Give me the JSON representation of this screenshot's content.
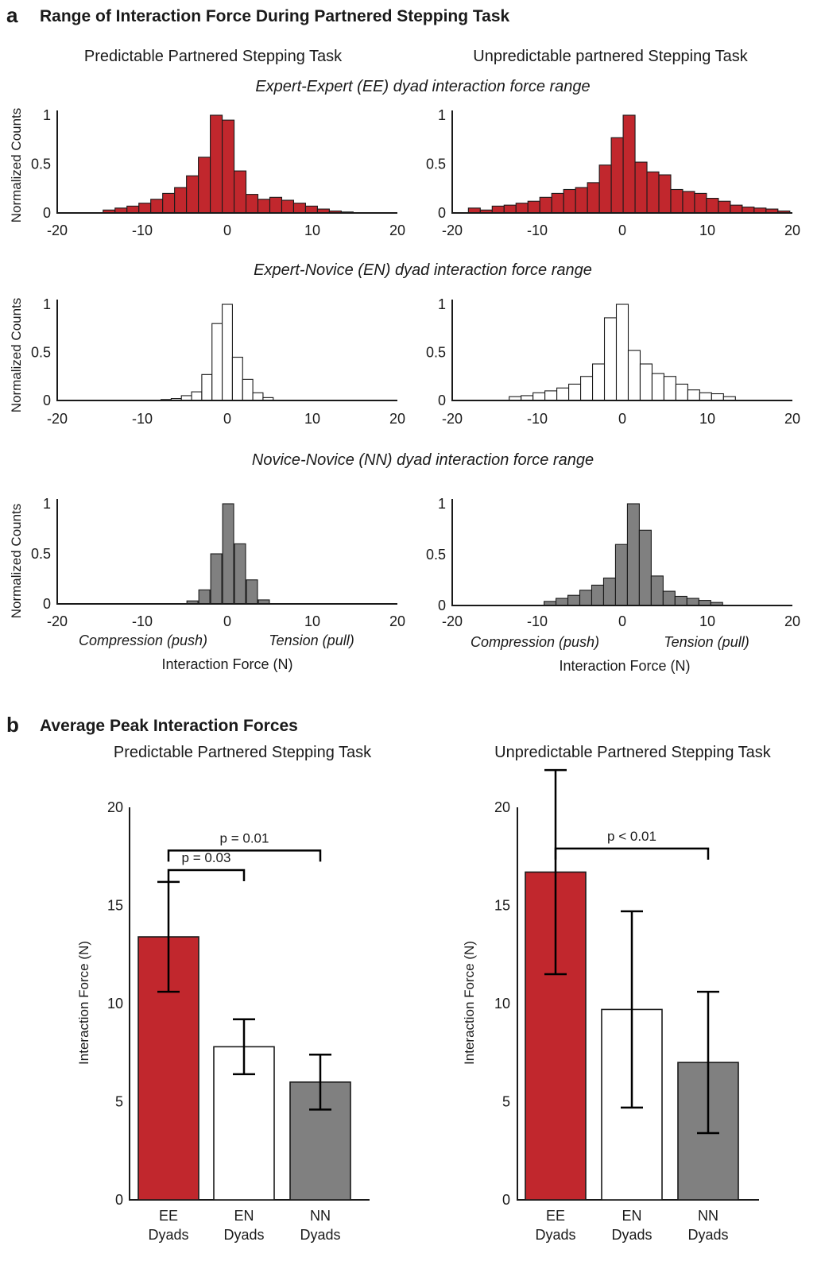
{
  "figure": {
    "panel_a": {
      "letter": "a",
      "title": "Range of Interaction Force During Partnered Stepping Task",
      "column_titles": [
        "Predictable Partnered Stepping Task",
        "Unpredictable partnered Stepping Task"
      ],
      "dyad_titles": [
        "Expert-Expert (EE) dyad interaction force range",
        "Expert-Novice (EN) dyad interaction force range",
        "Novice-Novice (NN) dyad interaction force range"
      ],
      "ylabel": "Normalized Counts",
      "xlabel": "Interaction Force (N)",
      "compression_label": "Compression (push)",
      "tension_label": "Tension (pull)"
    },
    "panel_b": {
      "letter": "b",
      "title": "Average Peak Interaction Forces",
      "column_titles": [
        "Predictable Partnered Stepping Task",
        "Unpredictable Partnered Stepping Task"
      ],
      "ylabel": "Interaction Force (N)"
    }
  },
  "colors": {
    "ee": "#c1272d",
    "en": "#ffffff",
    "nn": "#808080",
    "axis": "#1a1a1a"
  },
  "chart_data": [
    {
      "type": "bar",
      "id": "hist-ee-predictable",
      "dyad": "EE",
      "task": "Predictable",
      "xlim": [
        -20,
        20
      ],
      "ylim": [
        0,
        1
      ],
      "xticks": [
        "-20",
        "-10",
        "0",
        "10",
        "20"
      ],
      "yticks": [
        "0",
        "0.5",
        "1"
      ],
      "bin_width": 1.4,
      "x": [
        -13.9,
        -12.5,
        -11.1,
        -9.7,
        -8.3,
        -6.9,
        -5.5,
        -4.1,
        -2.7,
        -1.3,
        0.1,
        1.5,
        2.9,
        4.3,
        5.7,
        7.1,
        8.5,
        9.9,
        11.3,
        12.7,
        14.1
      ],
      "values": [
        0.03,
        0.05,
        0.07,
        0.1,
        0.14,
        0.2,
        0.26,
        0.38,
        0.57,
        1.0,
        0.95,
        0.43,
        0.19,
        0.14,
        0.16,
        0.13,
        0.1,
        0.07,
        0.04,
        0.02,
        0.01
      ]
    },
    {
      "type": "bar",
      "id": "hist-ee-unpredictable",
      "dyad": "EE",
      "task": "Unpredictable",
      "xlim": [
        -20,
        20
      ],
      "ylim": [
        0,
        1
      ],
      "xticks": [
        "-20",
        "-10",
        "0",
        "10",
        "20"
      ],
      "yticks": [
        "0",
        "0.5",
        "1"
      ],
      "bin_width": 1.4,
      "x": [
        -17.4,
        -16.0,
        -14.6,
        -13.2,
        -11.8,
        -10.4,
        -9.0,
        -7.6,
        -6.2,
        -4.8,
        -3.4,
        -2.0,
        -0.6,
        0.8,
        2.2,
        3.6,
        5.0,
        6.4,
        7.8,
        9.2,
        10.6,
        12.0,
        13.4,
        14.8,
        16.2,
        17.6,
        19.0
      ],
      "values": [
        0.05,
        0.03,
        0.07,
        0.08,
        0.1,
        0.12,
        0.16,
        0.2,
        0.24,
        0.26,
        0.31,
        0.49,
        0.77,
        1.0,
        0.52,
        0.42,
        0.39,
        0.24,
        0.22,
        0.2,
        0.15,
        0.12,
        0.08,
        0.06,
        0.05,
        0.04,
        0.02
      ]
    },
    {
      "type": "bar",
      "id": "hist-en-predictable",
      "dyad": "EN",
      "task": "Predictable",
      "xlim": [
        -20,
        20
      ],
      "ylim": [
        0,
        1
      ],
      "xticks": [
        "-20",
        "-10",
        "0",
        "10",
        "20"
      ],
      "yticks": [
        "0",
        "0.5",
        "1"
      ],
      "bin_width": 1.2,
      "x": [
        -7.2,
        -6.0,
        -4.8,
        -3.6,
        -2.4,
        -1.2,
        0.0,
        1.2,
        2.4,
        3.6,
        4.8
      ],
      "values": [
        0.01,
        0.02,
        0.05,
        0.09,
        0.27,
        0.8,
        1.0,
        0.45,
        0.22,
        0.08,
        0.03
      ]
    },
    {
      "type": "bar",
      "id": "hist-en-unpredictable",
      "dyad": "EN",
      "task": "Unpredictable",
      "xlim": [
        -20,
        20
      ],
      "ylim": [
        0,
        1
      ],
      "xticks": [
        "-20",
        "-10",
        "0",
        "10",
        "20"
      ],
      "yticks": [
        "0",
        "0.5",
        "1"
      ],
      "bin_width": 1.4,
      "x": [
        -12.6,
        -11.2,
        -9.8,
        -8.4,
        -7.0,
        -5.6,
        -4.2,
        -2.8,
        -1.4,
        0.0,
        1.4,
        2.8,
        4.2,
        5.6,
        7.0,
        8.4,
        9.8,
        11.2,
        12.6
      ],
      "values": [
        0.04,
        0.05,
        0.08,
        0.1,
        0.13,
        0.17,
        0.25,
        0.38,
        0.86,
        1.0,
        0.52,
        0.38,
        0.28,
        0.25,
        0.17,
        0.11,
        0.08,
        0.07,
        0.04
      ]
    },
    {
      "type": "bar",
      "id": "hist-nn-predictable",
      "dyad": "NN",
      "task": "Predictable",
      "xlim": [
        -20,
        20
      ],
      "ylim": [
        0,
        1
      ],
      "xticks": [
        "-20",
        "-10",
        "0",
        "10",
        "20"
      ],
      "yticks": [
        "0",
        "0.5",
        "1"
      ],
      "bin_width": 1.3,
      "x": [
        -4.1,
        -2.7,
        -1.3,
        0.1,
        1.5,
        2.9,
        4.3
      ],
      "values": [
        0.03,
        0.14,
        0.5,
        1.0,
        0.6,
        0.24,
        0.04
      ]
    },
    {
      "type": "bar",
      "id": "hist-nn-unpredictable",
      "dyad": "NN",
      "task": "Unpredictable",
      "xlim": [
        -20,
        20
      ],
      "ylim": [
        0,
        1
      ],
      "xticks": [
        "-20",
        "-10",
        "0",
        "10",
        "20"
      ],
      "yticks": [
        "0",
        "0.5",
        "1"
      ],
      "bin_width": 1.4,
      "x": [
        -8.5,
        -7.1,
        -5.7,
        -4.3,
        -2.9,
        -1.5,
        -0.1,
        1.3,
        2.7,
        4.1,
        5.5,
        6.9,
        8.3,
        9.7,
        11.1
      ],
      "values": [
        0.04,
        0.07,
        0.1,
        0.15,
        0.2,
        0.27,
        0.6,
        1.0,
        0.74,
        0.29,
        0.14,
        0.09,
        0.07,
        0.05,
        0.03
      ]
    },
    {
      "type": "bar",
      "id": "bar-predictable",
      "task": "Predictable",
      "categories": [
        "EE Dyads",
        "EN Dyads",
        "NN Dyads"
      ],
      "category_lines": [
        [
          "EE",
          "Dyads"
        ],
        [
          "EN",
          "Dyads"
        ],
        [
          "NN",
          "Dyads"
        ]
      ],
      "values": [
        13.4,
        7.8,
        6.0
      ],
      "error": [
        2.8,
        1.4,
        1.4
      ],
      "ylim": [
        0,
        20
      ],
      "yticks": [
        "0",
        "5",
        "10",
        "15",
        "20"
      ],
      "significance": [
        {
          "from": 0,
          "to": 2,
          "label": "p = 0.01",
          "level": 17.8
        },
        {
          "from": 0,
          "to": 1,
          "label": "p = 0.03",
          "level": 16.8
        }
      ]
    },
    {
      "type": "bar",
      "id": "bar-unpredictable",
      "task": "Unpredictable",
      "categories": [
        "EE Dyads",
        "EN Dyads",
        "NN Dyads"
      ],
      "category_lines": [
        [
          "EE",
          "Dyads"
        ],
        [
          "EN",
          "Dyads"
        ],
        [
          "NN",
          "Dyads"
        ]
      ],
      "values": [
        16.7,
        9.7,
        7.0
      ],
      "error": [
        5.2,
        5.0,
        3.6
      ],
      "ylim": [
        0,
        20
      ],
      "yticks": [
        "0",
        "5",
        "10",
        "15",
        "20"
      ],
      "significance": [
        {
          "from": 0,
          "to": 2,
          "label": "p < 0.01",
          "level": 17.9
        }
      ]
    }
  ]
}
